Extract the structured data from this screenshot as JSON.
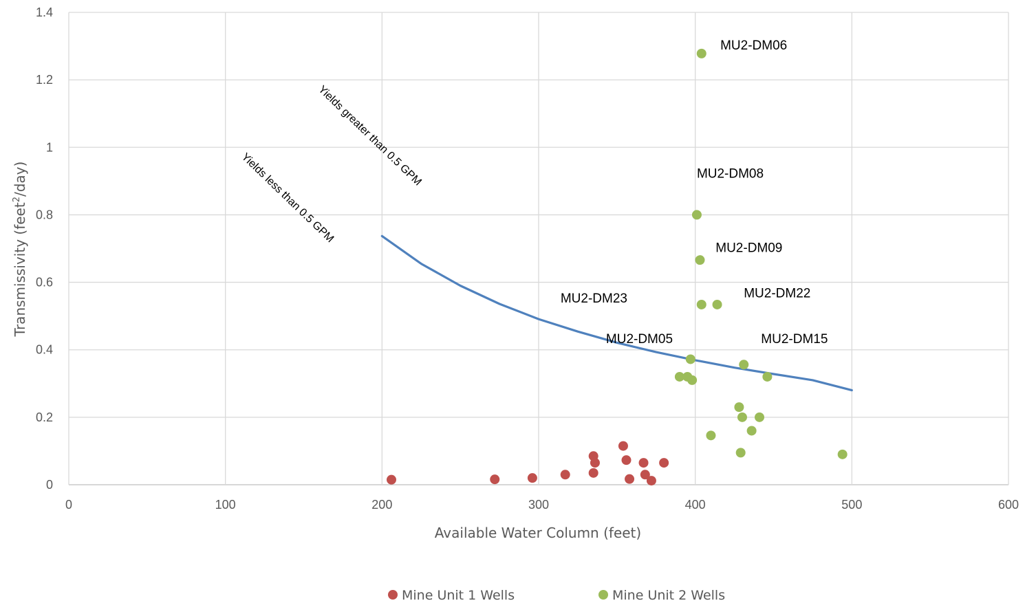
{
  "chart_data": {
    "type": "scatter",
    "xlabel": "Available Water Column (feet)",
    "ylabel_prefix": "Transmissivity (feet",
    "ylabel_sup": "2",
    "ylabel_suffix": "/day)",
    "xlim": [
      0,
      600
    ],
    "ylim": [
      0,
      1.4
    ],
    "x_ticks": [
      0,
      100,
      200,
      300,
      400,
      500,
      600
    ],
    "y_ticks": [
      0,
      0.2,
      0.4,
      0.6,
      0.8,
      1,
      1.2,
      1.4
    ],
    "x_tick_labels": [
      "0",
      "100",
      "200",
      "300",
      "400",
      "500",
      "600"
    ],
    "y_tick_labels": [
      "0",
      "0.2",
      "0.4",
      "0.6",
      "0.8",
      "1",
      "1.2",
      "1.4"
    ],
    "grid": true,
    "legend_position": "bottom",
    "series": [
      {
        "name": "Mine Unit 1 Wells",
        "color": "#C0504D",
        "points": [
          {
            "x": 206,
            "y": 0.015
          },
          {
            "x": 272,
            "y": 0.016
          },
          {
            "x": 296,
            "y": 0.02
          },
          {
            "x": 317,
            "y": 0.03
          },
          {
            "x": 335,
            "y": 0.085
          },
          {
            "x": 336,
            "y": 0.065
          },
          {
            "x": 335,
            "y": 0.035
          },
          {
            "x": 354,
            "y": 0.115
          },
          {
            "x": 356,
            "y": 0.073
          },
          {
            "x": 358,
            "y": 0.017
          },
          {
            "x": 367,
            "y": 0.065
          },
          {
            "x": 368,
            "y": 0.03
          },
          {
            "x": 372,
            "y": 0.012
          },
          {
            "x": 380,
            "y": 0.065
          }
        ]
      },
      {
        "name": "Mine Unit 2 Wells",
        "color": "#9BBB59",
        "points": [
          {
            "x": 404,
            "y": 1.278
          },
          {
            "x": 401,
            "y": 0.8
          },
          {
            "x": 403,
            "y": 0.666
          },
          {
            "x": 404,
            "y": 0.534
          },
          {
            "x": 414,
            "y": 0.534
          },
          {
            "x": 397,
            "y": 0.372
          },
          {
            "x": 431,
            "y": 0.356
          },
          {
            "x": 390,
            "y": 0.32
          },
          {
            "x": 395,
            "y": 0.32
          },
          {
            "x": 398,
            "y": 0.31
          },
          {
            "x": 446,
            "y": 0.32
          },
          {
            "x": 428,
            "y": 0.23
          },
          {
            "x": 430,
            "y": 0.2
          },
          {
            "x": 441,
            "y": 0.2
          },
          {
            "x": 436,
            "y": 0.16
          },
          {
            "x": 410,
            "y": 0.146
          },
          {
            "x": 429,
            "y": 0.095
          },
          {
            "x": 494,
            "y": 0.09
          }
        ]
      }
    ],
    "curve": {
      "color": "#4F81BD",
      "points": [
        [
          200,
          0.737
        ],
        [
          225,
          0.655
        ],
        [
          250,
          0.59
        ],
        [
          275,
          0.536
        ],
        [
          300,
          0.491
        ],
        [
          325,
          0.454
        ],
        [
          350,
          0.421
        ],
        [
          375,
          0.393
        ],
        [
          400,
          0.369
        ],
        [
          425,
          0.347
        ],
        [
          450,
          0.328
        ],
        [
          475,
          0.31
        ],
        [
          500,
          0.28
        ]
      ]
    },
    "point_labels": [
      {
        "text": "MU2-DM06",
        "x": 416,
        "y": 1.29
      },
      {
        "text": "MU2-DM08",
        "x": 401,
        "y": 0.91
      },
      {
        "text": "MU2-DM09",
        "x": 413,
        "y": 0.69
      },
      {
        "text": "MU2-DM23",
        "x": 314,
        "y": 0.54
      },
      {
        "text": "MU2-DM22",
        "x": 431,
        "y": 0.555
      },
      {
        "text": "MU2-DM05",
        "x": 343,
        "y": 0.42
      },
      {
        "text": "MU2-DM15",
        "x": 442,
        "y": 0.42
      }
    ],
    "annotations": [
      {
        "text": "Yields greater than 0.5 GPM",
        "x": 159,
        "y": 1.17,
        "rotate": 44
      },
      {
        "text": "Yields less than 0.5 GPM",
        "x": 110,
        "y": 0.97,
        "rotate": 44
      }
    ]
  }
}
